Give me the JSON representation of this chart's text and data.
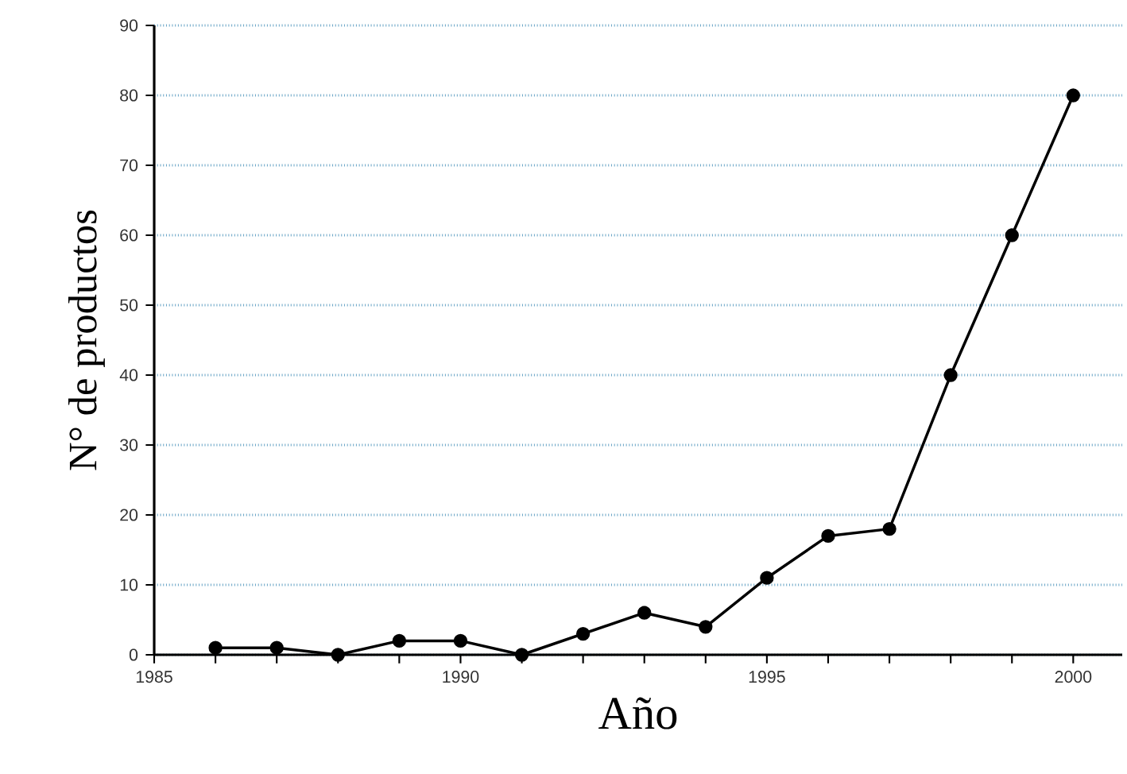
{
  "chart_data": {
    "type": "line",
    "xlabel": "Año",
    "ylabel": "N° de productos",
    "x": [
      1986,
      1987,
      1988,
      1989,
      1990,
      1991,
      1992,
      1993,
      1994,
      1995,
      1996,
      1997,
      1998,
      1999,
      2000
    ],
    "series": [
      {
        "color": "#000000",
        "values": [
          1,
          1,
          0,
          2,
          2,
          0,
          3,
          6,
          4,
          11,
          17,
          18,
          40,
          60,
          80
        ]
      }
    ],
    "xlim": [
      1985,
      2000.8
    ],
    "xticks": [
      1985,
      {
        "value": 1986,
        "label": null
      },
      {
        "value": 1987,
        "label": null
      },
      {
        "value": 1988,
        "label": null
      },
      {
        "value": 1989,
        "label": null
      },
      1990,
      {
        "value": 1991,
        "label": null
      },
      {
        "value": 1992,
        "label": null
      },
      {
        "value": 1993,
        "label": null
      },
      {
        "value": 1994,
        "label": null
      },
      1995,
      {
        "value": 1996,
        "label": null
      },
      {
        "value": 1997,
        "label": null
      },
      {
        "value": 1998,
        "label": null
      },
      {
        "value": 1999,
        "label": null
      },
      2000
    ],
    "ylim": [
      0,
      90
    ],
    "yticks": [
      0,
      10,
      20,
      30,
      40,
      50,
      60,
      70,
      80,
      90
    ],
    "grid": "y",
    "marker": "circle",
    "line_style": "solid"
  }
}
